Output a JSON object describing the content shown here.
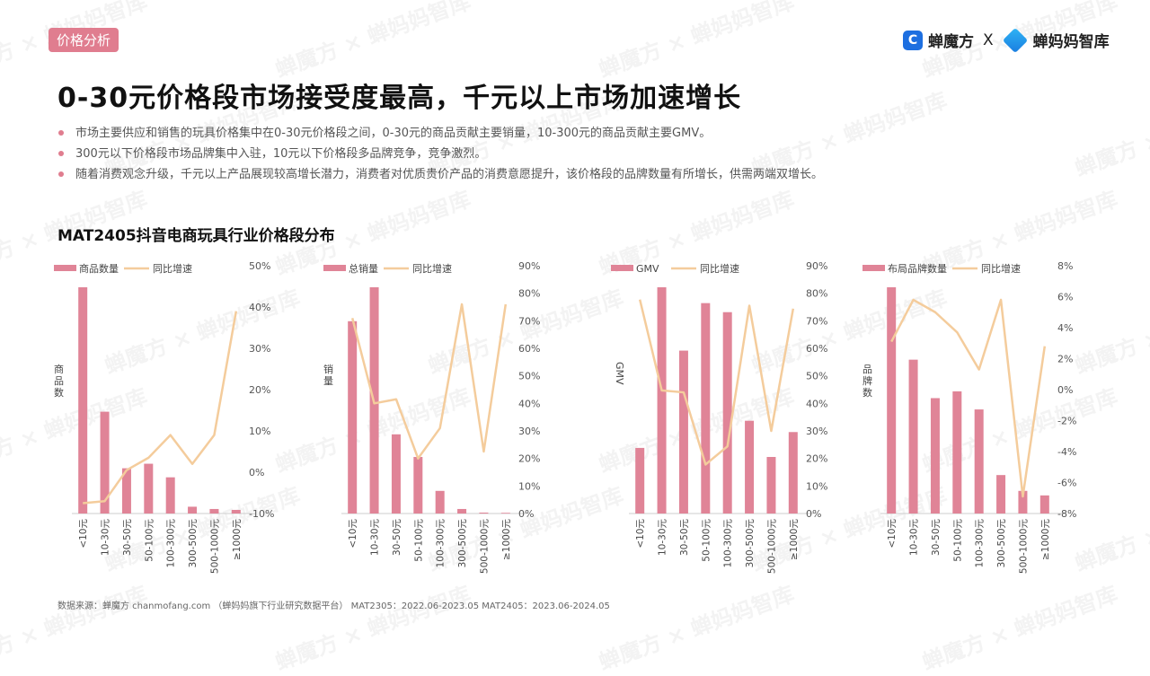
{
  "header": {
    "tag": "价格分析",
    "logo_left": "蝉魔方",
    "logo_sep": "X",
    "logo_right": "蝉妈妈智库"
  },
  "title": "0-30元价格段市场接受度最高，千元以上市场加速增长",
  "bullets": [
    "市场主要供应和销售的玩具价格集中在0-30元价格段之间，0-30元的商品贡献主要销量，10-300元的商品贡献主要GMV。",
    "300元以下价格段市场品牌集中入驻，10元以下价格段多品牌竞争，竞争激烈。",
    "随着消费观念升级，千元以上产品展现较高增长潜力，消费者对优质贵价产品的消费意愿提升，该价格段的品牌数量有所增长，供需两端双增长。"
  ],
  "section_title": "MAT2405抖音电商玩具行业价格段分布",
  "source": "数据来源：蝉魔方 chanmofang.com （蝉妈妈旗下行业研究数据平台） MAT2305：2022.06-2023.05 MAT2405：2023.06-2024.05",
  "watermark": "蝉魔方 × 蝉妈妈智库",
  "colors": {
    "bar": "#e08497",
    "line": "#f4cc9c",
    "accent": "#e07d8f"
  },
  "chart_data": [
    {
      "type": "bar",
      "title": "商品数量",
      "categories": [
        "<10元",
        "10-30元",
        "30-50元",
        "50-100元",
        "100-300元",
        "300-500元",
        "500-1000元",
        "≥1000元"
      ],
      "series": [
        {
          "name": "商品数量",
          "type": "bar",
          "axis": "left",
          "values": [
            100,
            45,
            20,
            22,
            16,
            3,
            2,
            1.6
          ]
        },
        {
          "name": "同比增速",
          "type": "line",
          "axis": "right",
          "values": [
            -7.5,
            -7,
            0.5,
            3.5,
            9,
            2,
            9,
            39
          ]
        }
      ],
      "ylabel": "商品数",
      "y2lim": [
        -10,
        50
      ],
      "y2ticks": [
        "50%",
        "40%",
        "30%",
        "20%",
        "10%",
        "0%",
        "-10%"
      ],
      "legend_position": "top"
    },
    {
      "type": "bar",
      "title": "总销量",
      "categories": [
        "<10元",
        "10-30元",
        "30-50元",
        "50-100元",
        "100-300元",
        "300-500元",
        "500-1000元",
        "≥1000元"
      ],
      "series": [
        {
          "name": "总销量",
          "type": "bar",
          "axis": "left",
          "values": [
            85,
            100,
            35,
            25,
            10,
            2,
            0.4,
            0.3
          ]
        },
        {
          "name": "同比增速",
          "type": "line",
          "axis": "right",
          "values": [
            71,
            40,
            41.5,
            20,
            31,
            76,
            22.5,
            76
          ]
        }
      ],
      "ylabel": "销量",
      "y2lim": [
        0,
        90
      ],
      "y2ticks": [
        "90%",
        "80%",
        "70%",
        "60%",
        "50%",
        "40%",
        "30%",
        "20%",
        "10%",
        "0%"
      ],
      "legend_position": "top"
    },
    {
      "type": "bar",
      "title": "GMV",
      "categories": [
        "<10元",
        "10-30元",
        "30-50元",
        "50-100元",
        "100-300元",
        "300-500元",
        "500-1000元",
        "≥1000元"
      ],
      "series": [
        {
          "name": "GMV",
          "type": "bar",
          "axis": "left",
          "values": [
            29,
            100,
            72,
            93,
            89,
            41,
            25,
            36
          ]
        },
        {
          "name": "同比增速",
          "type": "line",
          "axis": "right",
          "values": [
            77.7,
            44.7,
            44,
            17.8,
            24.4,
            75.5,
            30,
            74.4
          ]
        }
      ],
      "ylabel": "GMV",
      "y2lim": [
        0,
        90
      ],
      "y2ticks": [
        "90%",
        "80%",
        "70%",
        "60%",
        "50%",
        "40%",
        "30%",
        "20%",
        "10%",
        "0%"
      ],
      "legend_position": "top"
    },
    {
      "type": "bar",
      "title": "布局品牌数量",
      "categories": [
        "<10元",
        "10-30元",
        "30-50元",
        "50-100元",
        "100-300元",
        "300-500元",
        "500-1000元",
        "≥1000元"
      ],
      "series": [
        {
          "name": "布局品牌数量",
          "type": "bar",
          "axis": "left",
          "values": [
            100,
            68,
            51,
            54,
            46,
            17,
            10,
            8
          ]
        },
        {
          "name": "同比增速",
          "type": "line",
          "axis": "right",
          "values": [
            3.1,
            5.8,
            5.0,
            3.7,
            1.3,
            5.8,
            -6.9,
            2.8
          ]
        }
      ],
      "ylabel": "品牌数",
      "y2lim": [
        -8,
        8
      ],
      "y2ticks": [
        "8%",
        "6%",
        "4%",
        "2%",
        "0%",
        "-2%",
        "-4%",
        "-6%",
        "-8%"
      ],
      "legend_position": "top"
    }
  ]
}
